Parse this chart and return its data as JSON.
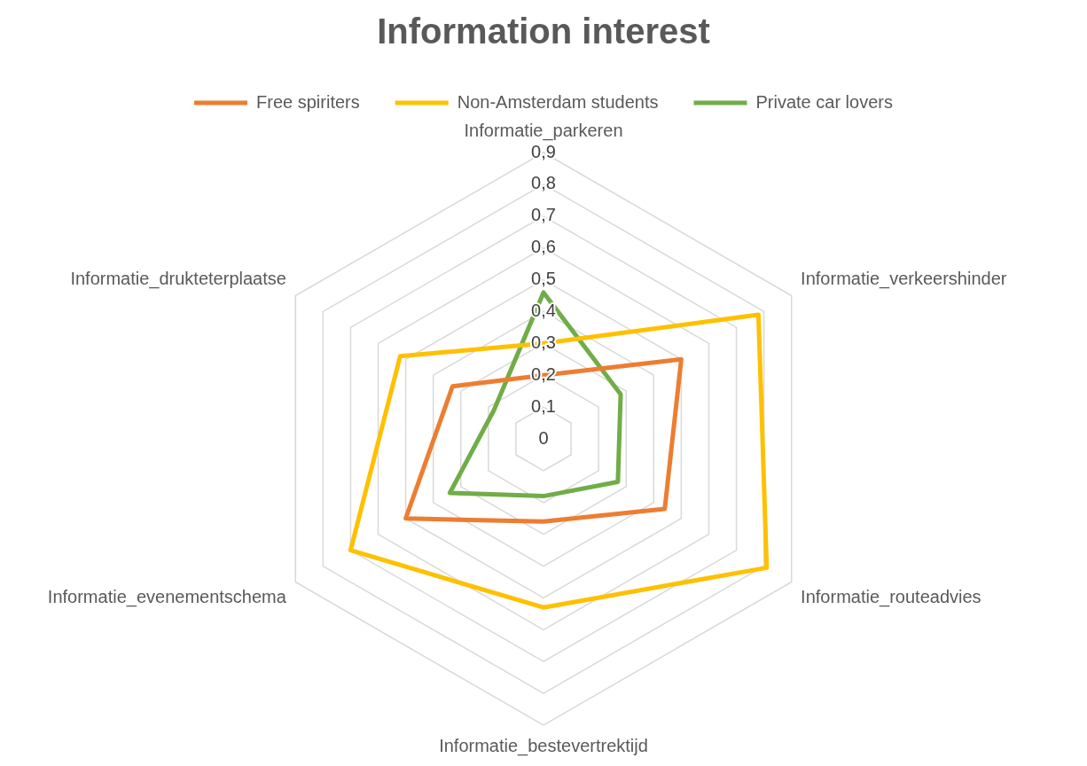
{
  "chart_data": {
    "type": "radar",
    "title": "Information interest",
    "categories": [
      "Informatie_parkeren",
      "Informatie_verkeershinder",
      "Informatie_routeadvies",
      "Informatie_bestevertrektijd",
      "Informatie_evenementschema",
      "Informatie_drukteterplaatse"
    ],
    "series": [
      {
        "name": "Free spiriters",
        "color": "#ed7d31",
        "values": [
          0.2,
          0.5,
          0.44,
          0.26,
          0.5,
          0.33
        ]
      },
      {
        "name": "Non-Amsterdam students",
        "color": "#ffc000",
        "values": [
          0.3,
          0.78,
          0.81,
          0.53,
          0.7,
          0.52
        ]
      },
      {
        "name": "Private car lovers",
        "color": "#70ad47",
        "values": [
          0.46,
          0.28,
          0.27,
          0.18,
          0.34,
          0.18
        ]
      }
    ],
    "ylim": [
      0,
      0.9
    ],
    "yticks": [
      {
        "value": 0,
        "label": "0"
      },
      {
        "value": 0.1,
        "label": "0,1"
      },
      {
        "value": 0.2,
        "label": "0,2"
      },
      {
        "value": 0.3,
        "label": "0,3"
      },
      {
        "value": 0.4,
        "label": "0,4"
      },
      {
        "value": 0.5,
        "label": "0,5"
      },
      {
        "value": 0.6,
        "label": "0,6"
      },
      {
        "value": 0.7,
        "label": "0,7"
      },
      {
        "value": 0.8,
        "label": "0,8"
      },
      {
        "value": 0.9,
        "label": "0,9"
      }
    ],
    "grid": true,
    "legend": "top",
    "marker": "none"
  }
}
